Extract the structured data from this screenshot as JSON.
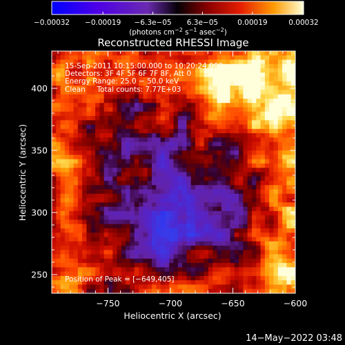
{
  "chart_data": {
    "type": "heatmap",
    "title": "Reconstructed RHESSI Image",
    "xlabel": "Heliocentric X (arcsec)",
    "ylabel": "Heliocentric Y (arcsec)",
    "xlim": [
      -795,
      -600
    ],
    "ylim": [
      235,
      430
    ],
    "x_ticks": [
      -750,
      -700,
      -650,
      -600
    ],
    "x_tick_labels": [
      "−750",
      "−700",
      "−650",
      "−600"
    ],
    "y_ticks": [
      250,
      300,
      350,
      400
    ],
    "y_tick_labels": [
      "250",
      "300",
      "350",
      "400"
    ],
    "colorbar": {
      "range": [
        -0.00032,
        0.00032
      ],
      "tick_values": [
        -0.00032,
        -0.00019,
        -6.3e-05,
        6.3e-05,
        0.00019,
        0.00032
      ],
      "tick_labels": [
        "−0.00032",
        "−0.00019",
        "−6.3e−05",
        "6.3e−05",
        "0.00019",
        "0.00032"
      ],
      "unit_label": {
        "prefix": "(photons cm",
        "exp1": "−2",
        "mid1": " s",
        "exp2": "−1",
        "mid2": " asec",
        "exp3": "−2",
        "suffix": ")"
      }
    },
    "info_lines": [
      "15-Sep-2011 10:15:00.000 to 10:20:24.000",
      "Detectors: 3F 4F 5F 6F 7F 8F, Att 0",
      "Energy Range: 25.0 − 50.0 keV",
      "Clean     Total counts: 7.77E+03"
    ],
    "peak_label": "Position of Peak = [−649,405]",
    "peak_position": [
      -649,
      405
    ],
    "colors": {
      "axes": "#ffffff",
      "background": "#000000"
    }
  },
  "footer": {
    "timestamp": "14−May−2022 03:48"
  }
}
